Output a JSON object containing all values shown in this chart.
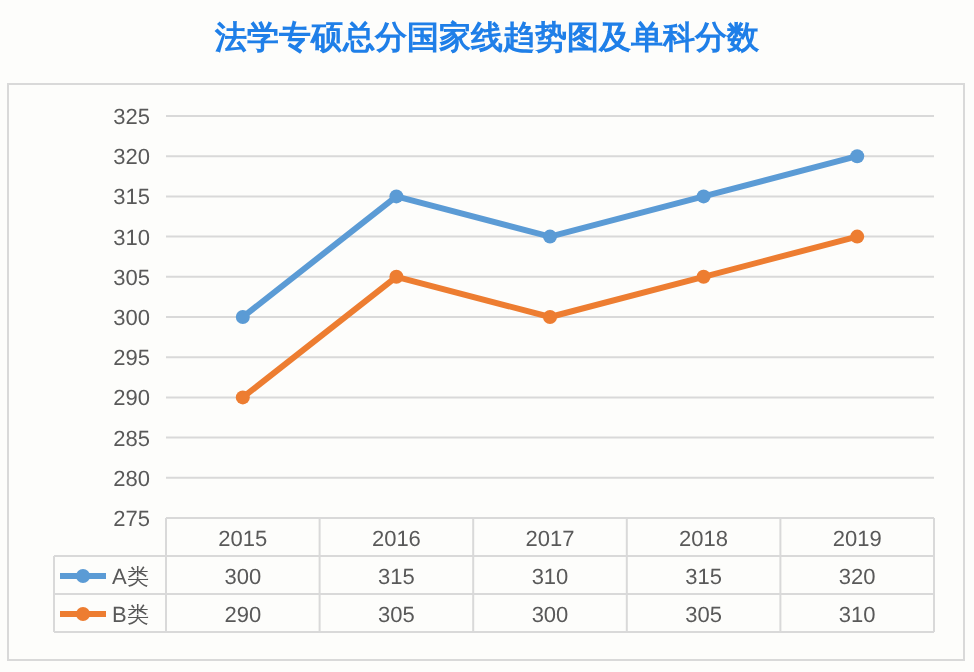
{
  "chart_data": {
    "type": "line",
    "title": "法学专硕总分国家线趋势图及单科分数",
    "categories": [
      "2015",
      "2016",
      "2017",
      "2018",
      "2019"
    ],
    "series": [
      {
        "name": "A类",
        "color": "#5b9bd5",
        "values": [
          300,
          315,
          310,
          315,
          320
        ]
      },
      {
        "name": "B类",
        "color": "#ed7d31",
        "values": [
          290,
          305,
          300,
          305,
          310
        ]
      }
    ],
    "ylim": [
      275,
      325
    ],
    "yticks": [
      275,
      280,
      285,
      290,
      295,
      300,
      305,
      310,
      315,
      320,
      325
    ],
    "grid": "y",
    "marker": "circle",
    "line_style": "solid",
    "legend": "bottom",
    "data_labels": true
  }
}
